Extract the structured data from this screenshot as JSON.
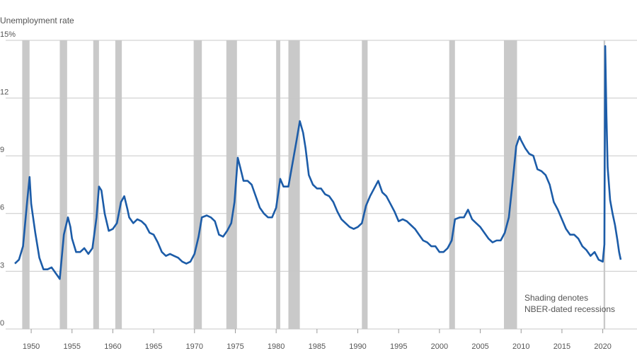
{
  "chart_data": {
    "type": "line",
    "y_label": "Unemployment rate",
    "annotation": [
      "Shading denotes",
      "NBER-dated recessions"
    ],
    "xlim": [
      1948,
      2023.5
    ],
    "ylim": [
      0,
      15
    ],
    "xticks": [
      1950,
      1955,
      1960,
      1965,
      1970,
      1975,
      1980,
      1985,
      1990,
      1995,
      2000,
      2005,
      2010,
      2015,
      2020
    ],
    "yticks": [
      0,
      3,
      6,
      9,
      12,
      {
        "value": 15,
        "label": "15%"
      }
    ],
    "grid": true,
    "color": "#1c5ca8",
    "recession_color": "#c9c9c9",
    "recessions": [
      [
        1948.9,
        1949.8
      ],
      [
        1953.5,
        1954.4
      ],
      [
        1957.6,
        1958.3
      ],
      [
        1960.3,
        1961.1
      ],
      [
        1969.9,
        1970.9
      ],
      [
        1973.9,
        1975.2
      ],
      [
        1980.0,
        1980.5
      ],
      [
        1981.5,
        1982.9
      ],
      [
        1990.5,
        1991.2
      ],
      [
        2001.2,
        2001.9
      ],
      [
        2007.9,
        2009.5
      ],
      [
        2020.1,
        2020.3
      ]
    ],
    "x": [
      1948.0,
      1948.5,
      1949.0,
      1949.5,
      1949.8,
      1950.0,
      1950.5,
      1951.0,
      1951.5,
      1952.0,
      1952.5,
      1953.0,
      1953.5,
      1954.0,
      1954.5,
      1954.8,
      1955.0,
      1955.5,
      1956.0,
      1956.5,
      1957.0,
      1957.5,
      1958.0,
      1958.3,
      1958.6,
      1959.0,
      1959.5,
      1960.0,
      1960.5,
      1961.0,
      1961.4,
      1961.8,
      1962.0,
      1962.5,
      1963.0,
      1963.5,
      1964.0,
      1964.5,
      1965.0,
      1965.5,
      1966.0,
      1966.5,
      1967.0,
      1967.5,
      1968.0,
      1968.5,
      1969.0,
      1969.5,
      1970.0,
      1970.5,
      1970.9,
      1971.5,
      1972.0,
      1972.5,
      1973.0,
      1973.5,
      1974.0,
      1974.5,
      1974.9,
      1975.3,
      1975.6,
      1976.0,
      1976.5,
      1977.0,
      1977.5,
      1978.0,
      1978.5,
      1979.0,
      1979.5,
      1980.0,
      1980.5,
      1980.9,
      1981.5,
      1982.0,
      1982.5,
      1982.9,
      1983.3,
      1983.6,
      1984.0,
      1984.5,
      1985.0,
      1985.5,
      1986.0,
      1986.5,
      1987.0,
      1987.5,
      1988.0,
      1988.5,
      1989.0,
      1989.5,
      1990.0,
      1990.5,
      1991.0,
      1991.5,
      1992.0,
      1992.5,
      1993.0,
      1993.5,
      1994.0,
      1994.5,
      1995.0,
      1995.5,
      1996.0,
      1996.5,
      1997.0,
      1997.5,
      1998.0,
      1998.5,
      1999.0,
      1999.5,
      2000.0,
      2000.5,
      2001.0,
      2001.5,
      2001.9,
      2002.5,
      2003.0,
      2003.5,
      2004.0,
      2004.5,
      2005.0,
      2005.5,
      2006.0,
      2006.5,
      2007.0,
      2007.5,
      2008.0,
      2008.5,
      2009.0,
      2009.4,
      2009.8,
      2010.0,
      2010.5,
      2011.0,
      2011.5,
      2012.0,
      2012.5,
      2013.0,
      2013.5,
      2014.0,
      2014.5,
      2015.0,
      2015.5,
      2016.0,
      2016.5,
      2017.0,
      2017.5,
      2018.0,
      2018.5,
      2019.0,
      2019.5,
      2020.0,
      2020.2,
      2020.3,
      2020.45,
      2020.6,
      2020.9,
      2021.2,
      2021.5,
      2021.8,
      2022.0,
      2022.2
    ],
    "values": [
      3.4,
      3.6,
      4.3,
      6.6,
      7.9,
      6.5,
      5.0,
      3.7,
      3.1,
      3.1,
      3.2,
      2.9,
      2.6,
      4.9,
      5.8,
      5.3,
      4.7,
      4.0,
      4.0,
      4.2,
      3.9,
      4.2,
      5.8,
      7.4,
      7.2,
      6.0,
      5.1,
      5.2,
      5.5,
      6.6,
      6.9,
      6.2,
      5.8,
      5.5,
      5.7,
      5.6,
      5.4,
      5.0,
      4.9,
      4.5,
      4.0,
      3.8,
      3.9,
      3.8,
      3.7,
      3.5,
      3.4,
      3.5,
      3.9,
      4.8,
      5.8,
      5.9,
      5.8,
      5.6,
      4.9,
      4.8,
      5.1,
      5.5,
      6.6,
      8.9,
      8.4,
      7.7,
      7.7,
      7.5,
      6.9,
      6.3,
      6.0,
      5.8,
      5.8,
      6.3,
      7.8,
      7.4,
      7.4,
      8.6,
      9.8,
      10.8,
      10.2,
      9.4,
      8.0,
      7.5,
      7.3,
      7.3,
      7.0,
      6.9,
      6.6,
      6.1,
      5.7,
      5.5,
      5.3,
      5.2,
      5.3,
      5.5,
      6.4,
      6.9,
      7.3,
      7.7,
      7.1,
      6.9,
      6.5,
      6.1,
      5.6,
      5.7,
      5.6,
      5.4,
      5.2,
      4.9,
      4.6,
      4.5,
      4.3,
      4.3,
      4.0,
      4.0,
      4.2,
      4.6,
      5.7,
      5.8,
      5.8,
      6.2,
      5.7,
      5.5,
      5.3,
      5.0,
      4.7,
      4.5,
      4.6,
      4.6,
      5.0,
      5.8,
      7.8,
      9.5,
      10.0,
      9.8,
      9.4,
      9.1,
      9.0,
      8.3,
      8.2,
      8.0,
      7.5,
      6.6,
      6.2,
      5.7,
      5.2,
      4.9,
      4.9,
      4.7,
      4.3,
      4.1,
      3.8,
      4.0,
      3.6,
      3.5,
      4.4,
      14.7,
      11.1,
      8.4,
      6.7,
      6.0,
      5.4,
      4.6,
      4.0,
      3.6
    ]
  }
}
